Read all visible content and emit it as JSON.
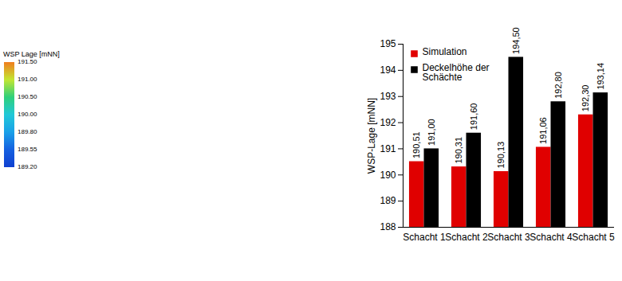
{
  "chart_data": [
    {
      "type": "bar",
      "categories": [
        "Schacht 1",
        "Schacht 2",
        "Schacht 3",
        "Schacht 4",
        "Schacht 5"
      ],
      "series": [
        {
          "name": "Simulation",
          "color": "#e00000",
          "values": [
            190.51,
            190.31,
            190.13,
            191.06,
            192.3
          ],
          "value_labels": [
            "190,51",
            "190,31",
            "190,13",
            "191,06",
            "192,30"
          ]
        },
        {
          "name": "Deckelhöhe der Schächte",
          "color": "#000000",
          "values": [
            191.0,
            191.6,
            194.5,
            192.8,
            193.14
          ],
          "value_labels": [
            "191,00",
            "191,60",
            "194,50",
            "192,80",
            "193,14"
          ]
        }
      ],
      "y_label": "WSP-Lage [mNN]",
      "ylim": [
        188,
        195
      ],
      "yticks": [
        188,
        189,
        190,
        191,
        192,
        193,
        194,
        195
      ],
      "data_labels": true,
      "legend": "top-left",
      "grid": false
    },
    {
      "type": "colorbar",
      "title": "WSP Lage [mNN]",
      "ticks": [
        {
          "value": 191.5,
          "label": "191.50"
        },
        {
          "value": 191.0,
          "label": "191.00"
        },
        {
          "value": 190.5,
          "label": "190.50"
        },
        {
          "value": 190.0,
          "label": "190.00"
        },
        {
          "value": 189.8,
          "label": "189.80"
        },
        {
          "value": 189.55,
          "label": "189.55"
        },
        {
          "value": 189.2,
          "label": "189.20"
        }
      ],
      "colors": [
        "#f07d1e",
        "#c3e632",
        "#2fd07a",
        "#21c8d8",
        "#1aa0e8",
        "#1560e0",
        "#1040d0"
      ]
    }
  ]
}
